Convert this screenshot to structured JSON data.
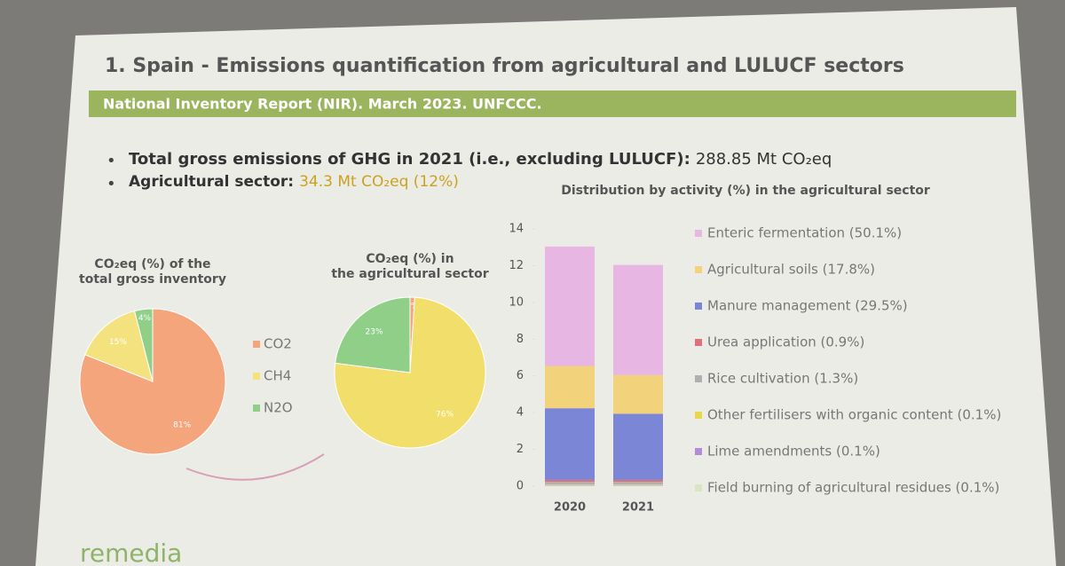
{
  "header": {
    "title": "1. Spain - Emissions quantification from agricultural and LULUCF sectors",
    "subtitle": "National Inventory Report (NIR). March 2023. UNFCCC."
  },
  "bullets": [
    {
      "label": "Total gross emissions of GHG in 2021 (i.e., excluding LULUCF):",
      "value": "288.85 Mt CO₂eq"
    },
    {
      "label": "Agricultural sector:",
      "value": "34.3 Mt CO₂eq (12%)"
    }
  ],
  "chart_data": [
    {
      "type": "pie",
      "title": "CO₂eq (%) of the total gross inventory",
      "categories": [
        "CO2",
        "CH4",
        "N2O"
      ],
      "values": [
        81,
        15,
        4
      ],
      "value_labels": [
        "81%",
        "15%",
        "4%"
      ],
      "colors": [
        "#f4a57c",
        "#f4e27e",
        "#8fcf88"
      ],
      "legend": true
    },
    {
      "type": "pie",
      "title": "CO₂eq (%) in the agricultural sector",
      "values": [
        1,
        76,
        23
      ],
      "value_labels": [
        "1%",
        "76%",
        "23%"
      ],
      "colors": [
        "#f4a57c",
        "#f2de6a",
        "#8fcf88"
      ],
      "legend": false
    },
    {
      "type": "stacked-bar",
      "title": "Distribution by activity (%) in the agricultural sector",
      "categories": [
        "2020",
        "2021"
      ],
      "ylim": [
        0,
        14
      ],
      "yticks": [
        0,
        2,
        4,
        6,
        8,
        10,
        12,
        14
      ],
      "series": [
        {
          "name": "Field burning of agricultural residues (0.1%)",
          "color": "#d9e6c2",
          "values": [
            0.03,
            0.03
          ]
        },
        {
          "name": "Lime amendments (0.1%)",
          "color": "#b58ad8",
          "values": [
            0.03,
            0.03
          ]
        },
        {
          "name": "Other fertilisers with organic content (0.1%)",
          "color": "#e6d84a",
          "values": [
            0.03,
            0.03
          ]
        },
        {
          "name": "Rice cultivation (1.3%)",
          "color": "#b0b0b0",
          "values": [
            0.15,
            0.15
          ]
        },
        {
          "name": "Urea application (0.9%)",
          "color": "#e0707a",
          "values": [
            0.1,
            0.1
          ]
        },
        {
          "name": "Manure management (29.5%)",
          "color": "#7b86d6",
          "values": [
            3.9,
            3.6
          ]
        },
        {
          "name": "Agricultural soils (17.8%)",
          "color": "#f3d27c",
          "values": [
            2.3,
            2.1
          ]
        },
        {
          "name": "Enteric fermentation (50.1%)",
          "color": "#e8b6e2",
          "values": [
            6.5,
            6.0
          ]
        }
      ]
    }
  ],
  "footer": {
    "logo": "remedia"
  }
}
